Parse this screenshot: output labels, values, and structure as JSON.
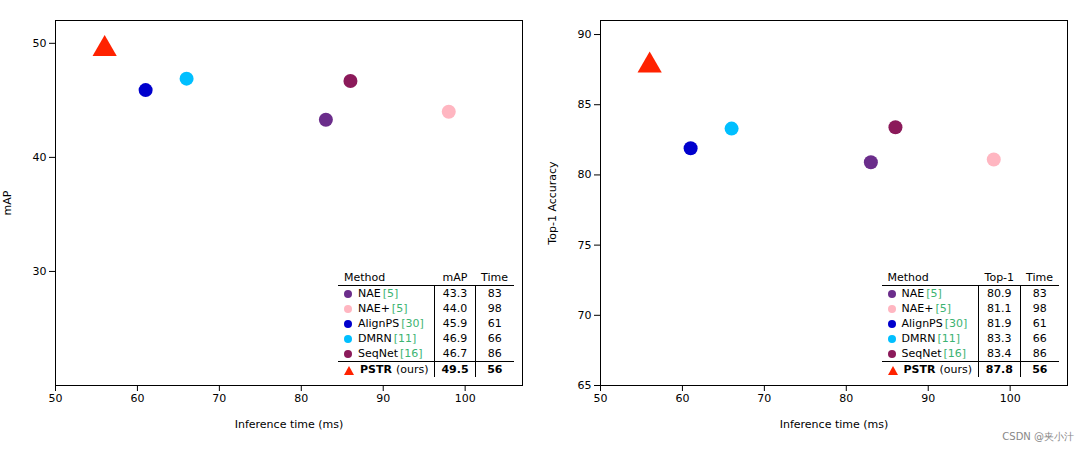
{
  "chart_data": [
    {
      "type": "scatter",
      "xlabel": "Inference time (ms)",
      "ylabel": "mAP",
      "xlim": [
        50,
        107
      ],
      "ylim": [
        20,
        52
      ],
      "xticks": [
        50,
        60,
        70,
        80,
        90,
        100
      ],
      "yticks": [
        30,
        40,
        50
      ],
      "series": [
        {
          "name": "NAE",
          "color": "#6B2D8B",
          "marker": "circle",
          "x": [
            83
          ],
          "values": [
            43.3
          ]
        },
        {
          "name": "NAE+",
          "color": "#FFB6C1",
          "marker": "circle",
          "x": [
            98
          ],
          "values": [
            44.0
          ]
        },
        {
          "name": "AlignPS",
          "color": "#0000CD",
          "marker": "circle",
          "x": [
            61
          ],
          "values": [
            45.9
          ]
        },
        {
          "name": "DMRN",
          "color": "#00BFFF",
          "marker": "circle",
          "x": [
            66
          ],
          "values": [
            46.9
          ]
        },
        {
          "name": "SeqNet",
          "color": "#8B1A5A",
          "marker": "circle",
          "x": [
            86
          ],
          "values": [
            46.7
          ]
        },
        {
          "name": "PSTR",
          "color": "#FF2200",
          "marker": "triangle",
          "x": [
            56
          ],
          "values": [
            49.5
          ]
        }
      ],
      "table": {
        "columns": [
          "Method",
          "mAP",
          "Time"
        ],
        "ref_color": "#3CB371",
        "rows": [
          {
            "method": "NAE",
            "ref": "[5]",
            "value": "43.3",
            "time": "83"
          },
          {
            "method": "NAE+",
            "ref": "[5]",
            "value": "44.0",
            "time": "98"
          },
          {
            "method": "AlignPS",
            "ref": "[30]",
            "value": "45.9",
            "time": "61"
          },
          {
            "method": "DMRN",
            "ref": "[11]",
            "value": "46.9",
            "time": "66"
          },
          {
            "method": "SeqNet",
            "ref": "[16]",
            "value": "46.7",
            "time": "86"
          },
          {
            "method": "PSTR",
            "note": "(ours)",
            "value": "49.5",
            "time": "56"
          }
        ]
      }
    },
    {
      "type": "scatter",
      "xlabel": "Inference time (ms)",
      "ylabel": "Top-1 Accuracy",
      "xlim": [
        50,
        107
      ],
      "ylim": [
        65,
        91
      ],
      "xticks": [
        50,
        60,
        70,
        80,
        90,
        100
      ],
      "yticks": [
        65,
        70,
        75,
        80,
        85,
        90
      ],
      "series": [
        {
          "name": "NAE",
          "color": "#6B2D8B",
          "marker": "circle",
          "x": [
            83
          ],
          "values": [
            80.9
          ]
        },
        {
          "name": "NAE+",
          "color": "#FFB6C1",
          "marker": "circle",
          "x": [
            98
          ],
          "values": [
            81.1
          ]
        },
        {
          "name": "AlignPS",
          "color": "#0000CD",
          "marker": "circle",
          "x": [
            61
          ],
          "values": [
            81.9
          ]
        },
        {
          "name": "DMRN",
          "color": "#00BFFF",
          "marker": "circle",
          "x": [
            66
          ],
          "values": [
            83.3
          ]
        },
        {
          "name": "SeqNet",
          "color": "#8B1A5A",
          "marker": "circle",
          "x": [
            86
          ],
          "values": [
            83.4
          ]
        },
        {
          "name": "PSTR",
          "color": "#FF2200",
          "marker": "triangle",
          "x": [
            56
          ],
          "values": [
            87.8
          ]
        }
      ],
      "table": {
        "columns": [
          "Method",
          "Top-1",
          "Time"
        ],
        "ref_color": "#3CB371",
        "rows": [
          {
            "method": "NAE",
            "ref": "[5]",
            "value": "80.9",
            "time": "83"
          },
          {
            "method": "NAE+",
            "ref": "[5]",
            "value": "81.1",
            "time": "98"
          },
          {
            "method": "AlignPS",
            "ref": "[30]",
            "value": "81.9",
            "time": "61"
          },
          {
            "method": "DMRN",
            "ref": "[11]",
            "value": "83.3",
            "time": "66"
          },
          {
            "method": "SeqNet",
            "ref": "[16]",
            "value": "83.4",
            "time": "86"
          },
          {
            "method": "PSTR",
            "note": "(ours)",
            "value": "87.8",
            "time": "56"
          }
        ]
      },
      "annotations": [
        {
          "text": "CSDN @夹小汁"
        }
      ]
    }
  ]
}
